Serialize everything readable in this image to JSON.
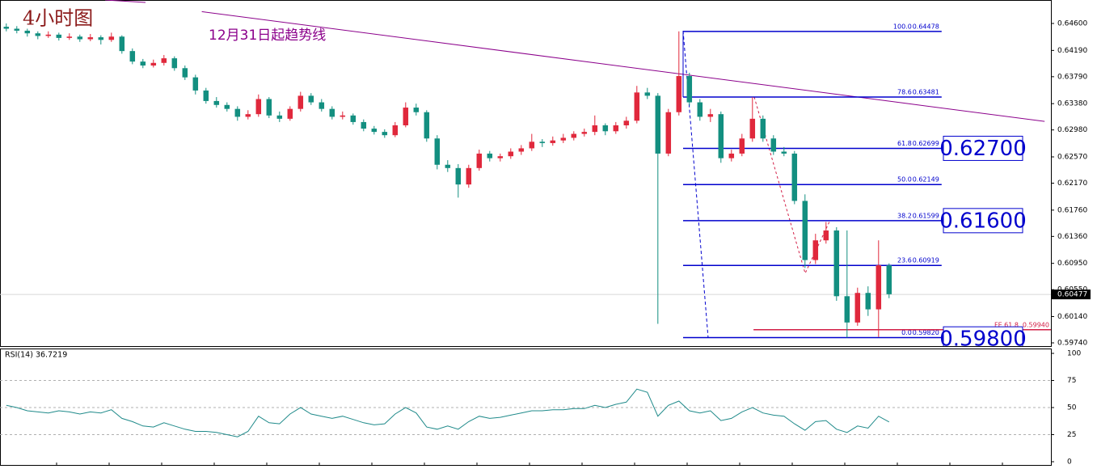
{
  "chart_data": [
    {
      "type": "candlestick",
      "title": "4小时图",
      "up_color": "#e0283c",
      "down_color": "#138f80",
      "xlim": [
        -0.6,
        99.4
      ],
      "ylim": [
        0.59691,
        0.64957
      ],
      "yticks": [
        {
          "value": 0.646,
          "label": "0.64600"
        },
        {
          "value": 0.6419,
          "label": "0.64190"
        },
        {
          "value": 0.6379,
          "label": "0.63790"
        },
        {
          "value": 0.6338,
          "label": "0.63380"
        },
        {
          "value": 0.6298,
          "label": "0.62980"
        },
        {
          "value": 0.6257,
          "label": "0.62570"
        },
        {
          "value": 0.6217,
          "label": "0.62170"
        },
        {
          "value": 0.6176,
          "label": "0.61760"
        },
        {
          "value": 0.6136,
          "label": "0.61360"
        },
        {
          "value": 0.6095,
          "label": "0.60950"
        },
        {
          "value": 0.6055,
          "label": "0.60550"
        },
        {
          "value": 0.6014,
          "label": "0.60140"
        },
        {
          "value": 0.5974,
          "label": "0.59740"
        }
      ],
      "ohlc": [
        [
          0.6455,
          0.646,
          0.6448,
          0.6452
        ],
        [
          0.6452,
          0.6456,
          0.6445,
          0.6449
        ],
        [
          0.6449,
          0.6452,
          0.644,
          0.6445
        ],
        [
          0.6445,
          0.6448,
          0.6436,
          0.6441
        ],
        [
          0.6441,
          0.6448,
          0.6438,
          0.6443
        ],
        [
          0.6443,
          0.6446,
          0.6434,
          0.6438
        ],
        [
          0.6438,
          0.6445,
          0.6435,
          0.644
        ],
        [
          0.644,
          0.6443,
          0.6432,
          0.6436
        ],
        [
          0.6436,
          0.6444,
          0.6433,
          0.6439
        ],
        [
          0.6439,
          0.6442,
          0.6428,
          0.6435
        ],
        [
          0.6435,
          0.6446,
          0.6432,
          0.644
        ],
        [
          0.644,
          0.6442,
          0.6414,
          0.6418
        ],
        [
          0.6418,
          0.6422,
          0.6398,
          0.6402
        ],
        [
          0.6402,
          0.6406,
          0.6392,
          0.6396
        ],
        [
          0.6396,
          0.6405,
          0.6393,
          0.64
        ],
        [
          0.64,
          0.6412,
          0.6396,
          0.6407
        ],
        [
          0.6407,
          0.641,
          0.6388,
          0.6392
        ],
        [
          0.6392,
          0.6396,
          0.6374,
          0.6378
        ],
        [
          0.6378,
          0.6382,
          0.6352,
          0.6358
        ],
        [
          0.6358,
          0.6362,
          0.6338,
          0.6342
        ],
        [
          0.6342,
          0.6348,
          0.6332,
          0.6336
        ],
        [
          0.6336,
          0.634,
          0.6326,
          0.633
        ],
        [
          0.633,
          0.6334,
          0.6312,
          0.6318
        ],
        [
          0.6318,
          0.6328,
          0.6314,
          0.6322
        ],
        [
          0.6322,
          0.6352,
          0.6318,
          0.6345
        ],
        [
          0.6345,
          0.6348,
          0.6316,
          0.632
        ],
        [
          0.632,
          0.6326,
          0.631,
          0.6315
        ],
        [
          0.6315,
          0.6334,
          0.6312,
          0.633
        ],
        [
          0.633,
          0.6356,
          0.6326,
          0.635
        ],
        [
          0.635,
          0.6354,
          0.6336,
          0.634
        ],
        [
          0.634,
          0.6345,
          0.6326,
          0.633
        ],
        [
          0.633,
          0.6334,
          0.6314,
          0.6318
        ],
        [
          0.6318,
          0.6326,
          0.6314,
          0.632
        ],
        [
          0.632,
          0.6323,
          0.6306,
          0.631
        ],
        [
          0.631,
          0.6314,
          0.6296,
          0.63
        ],
        [
          0.63,
          0.6304,
          0.6291,
          0.6295
        ],
        [
          0.6295,
          0.6299,
          0.6286,
          0.629
        ],
        [
          0.629,
          0.631,
          0.6287,
          0.6305
        ],
        [
          0.6305,
          0.634,
          0.6302,
          0.6332
        ],
        [
          0.6332,
          0.6338,
          0.632,
          0.6325
        ],
        [
          0.6325,
          0.6328,
          0.628,
          0.6285
        ],
        [
          0.6285,
          0.629,
          0.6238,
          0.6245
        ],
        [
          0.6245,
          0.6252,
          0.6234,
          0.624
        ],
        [
          0.624,
          0.6246,
          0.6195,
          0.6215
        ],
        [
          0.6215,
          0.6245,
          0.621,
          0.624
        ],
        [
          0.624,
          0.6268,
          0.6236,
          0.6262
        ],
        [
          0.6262,
          0.6266,
          0.625,
          0.6255
        ],
        [
          0.6255,
          0.6262,
          0.625,
          0.6258
        ],
        [
          0.6258,
          0.627,
          0.6254,
          0.6265
        ],
        [
          0.6265,
          0.6275,
          0.626,
          0.627
        ],
        [
          0.627,
          0.6292,
          0.6266,
          0.628
        ],
        [
          0.628,
          0.6284,
          0.6272,
          0.6278
        ],
        [
          0.6278,
          0.6288,
          0.6274,
          0.6282
        ],
        [
          0.6282,
          0.6292,
          0.6278,
          0.6286
        ],
        [
          0.6286,
          0.6296,
          0.6282,
          0.6292
        ],
        [
          0.6292,
          0.63,
          0.6288,
          0.6295
        ],
        [
          0.6295,
          0.632,
          0.629,
          0.6305
        ],
        [
          0.6305,
          0.6308,
          0.629,
          0.6296
        ],
        [
          0.6296,
          0.631,
          0.6292,
          0.6305
        ],
        [
          0.6305,
          0.6318,
          0.63,
          0.6312
        ],
        [
          0.6312,
          0.6365,
          0.6308,
          0.6355
        ],
        [
          0.6355,
          0.6362,
          0.6345,
          0.635
        ],
        [
          0.635,
          0.6354,
          0.6003,
          0.6262
        ],
        [
          0.6262,
          0.633,
          0.6258,
          0.6325
        ],
        [
          0.6325,
          0.6448,
          0.632,
          0.638
        ],
        [
          0.638,
          0.6385,
          0.6335,
          0.634
        ],
        [
          0.634,
          0.6345,
          0.6312,
          0.6318
        ],
        [
          0.6318,
          0.633,
          0.631,
          0.6322
        ],
        [
          0.6322,
          0.6326,
          0.6248,
          0.6255
        ],
        [
          0.6255,
          0.6268,
          0.625,
          0.6262
        ],
        [
          0.6262,
          0.6292,
          0.6258,
          0.6285
        ],
        [
          0.6285,
          0.6348,
          0.628,
          0.6315
        ],
        [
          0.6315,
          0.632,
          0.628,
          0.6285
        ],
        [
          0.6285,
          0.629,
          0.626,
          0.6265
        ],
        [
          0.6265,
          0.6272,
          0.6258,
          0.6262
        ],
        [
          0.6262,
          0.6266,
          0.6185,
          0.619
        ],
        [
          0.619,
          0.62,
          0.6088,
          0.61
        ],
        [
          0.61,
          0.614,
          0.6094,
          0.613
        ],
        [
          0.613,
          0.6158,
          0.6125,
          0.6145
        ],
        [
          0.6145,
          0.615,
          0.6038,
          0.6045
        ],
        [
          0.6045,
          0.6145,
          0.5982,
          0.6005
        ],
        [
          0.6005,
          0.6058,
          0.6,
          0.605
        ],
        [
          0.605,
          0.606,
          0.6015,
          0.6025
        ],
        [
          0.6025,
          0.613,
          0.5983,
          0.6092
        ],
        [
          0.6092,
          0.6095,
          0.6042,
          0.6048
        ]
      ],
      "last_price": 0.60477,
      "trendline": {
        "label": "12月31日起趋势线",
        "x": [
          18.6,
          98.8
        ],
        "y": [
          0.6478,
          0.6311
        ],
        "color": "#8b008b"
      },
      "fibonacci": {
        "x": [
          64.4,
          89
        ],
        "color": "#0000cd",
        "levels": [
          {
            "ratio": "100.0",
            "price": 0.64478
          },
          {
            "ratio": "78.6",
            "price": 0.63481
          },
          {
            "ratio": "61.8",
            "price": 0.62699
          },
          {
            "ratio": "50.0",
            "price": 0.62149
          },
          {
            "ratio": "38.2",
            "price": 0.61599
          },
          {
            "ratio": "23.6",
            "price": 0.60919
          },
          {
            "ratio": "0.0",
            "price": {
              "value": 0.5982,
              "label": "0.59820"
            }
          }
        ]
      },
      "fe": {
        "label": "FE 61.8",
        "price": {
          "value": 0.5994,
          "label": "0.59940"
        },
        "x": [
          71.1,
          99.4
        ],
        "color": "#d21e46"
      },
      "targets": [
        {
          "value": 0.627,
          "label": "0.62700"
        },
        {
          "value": 0.616,
          "label": "0.61600"
        },
        {
          "value": 0.598,
          "label": "0.59800"
        }
      ]
    },
    {
      "type": "line",
      "title": "RSI(14) 36.7219",
      "color": "#1f8a8a",
      "xlim": [
        -0.6,
        99.4
      ],
      "ylim": [
        0,
        100
      ],
      "yticks": [
        100,
        75,
        50,
        25,
        0
      ],
      "values": [
        52,
        50,
        47,
        46,
        45,
        47,
        46,
        44,
        46,
        45,
        48,
        40,
        37,
        33,
        32,
        36,
        33,
        30,
        28,
        28,
        27,
        25,
        23,
        28,
        42,
        36,
        35,
        44,
        50,
        44,
        42,
        40,
        42,
        39,
        36,
        34,
        35,
        44,
        50,
        45,
        32,
        30,
        33,
        30,
        37,
        42,
        40,
        41,
        43,
        45,
        47,
        47,
        48,
        48,
        49,
        49,
        52,
        50,
        53,
        55,
        67,
        64,
        42,
        52,
        56,
        47,
        45,
        47,
        38,
        40,
        46,
        50,
        45,
        43,
        42,
        35,
        29,
        37,
        38,
        30,
        27,
        33,
        31,
        42,
        36.7219
      ]
    }
  ]
}
